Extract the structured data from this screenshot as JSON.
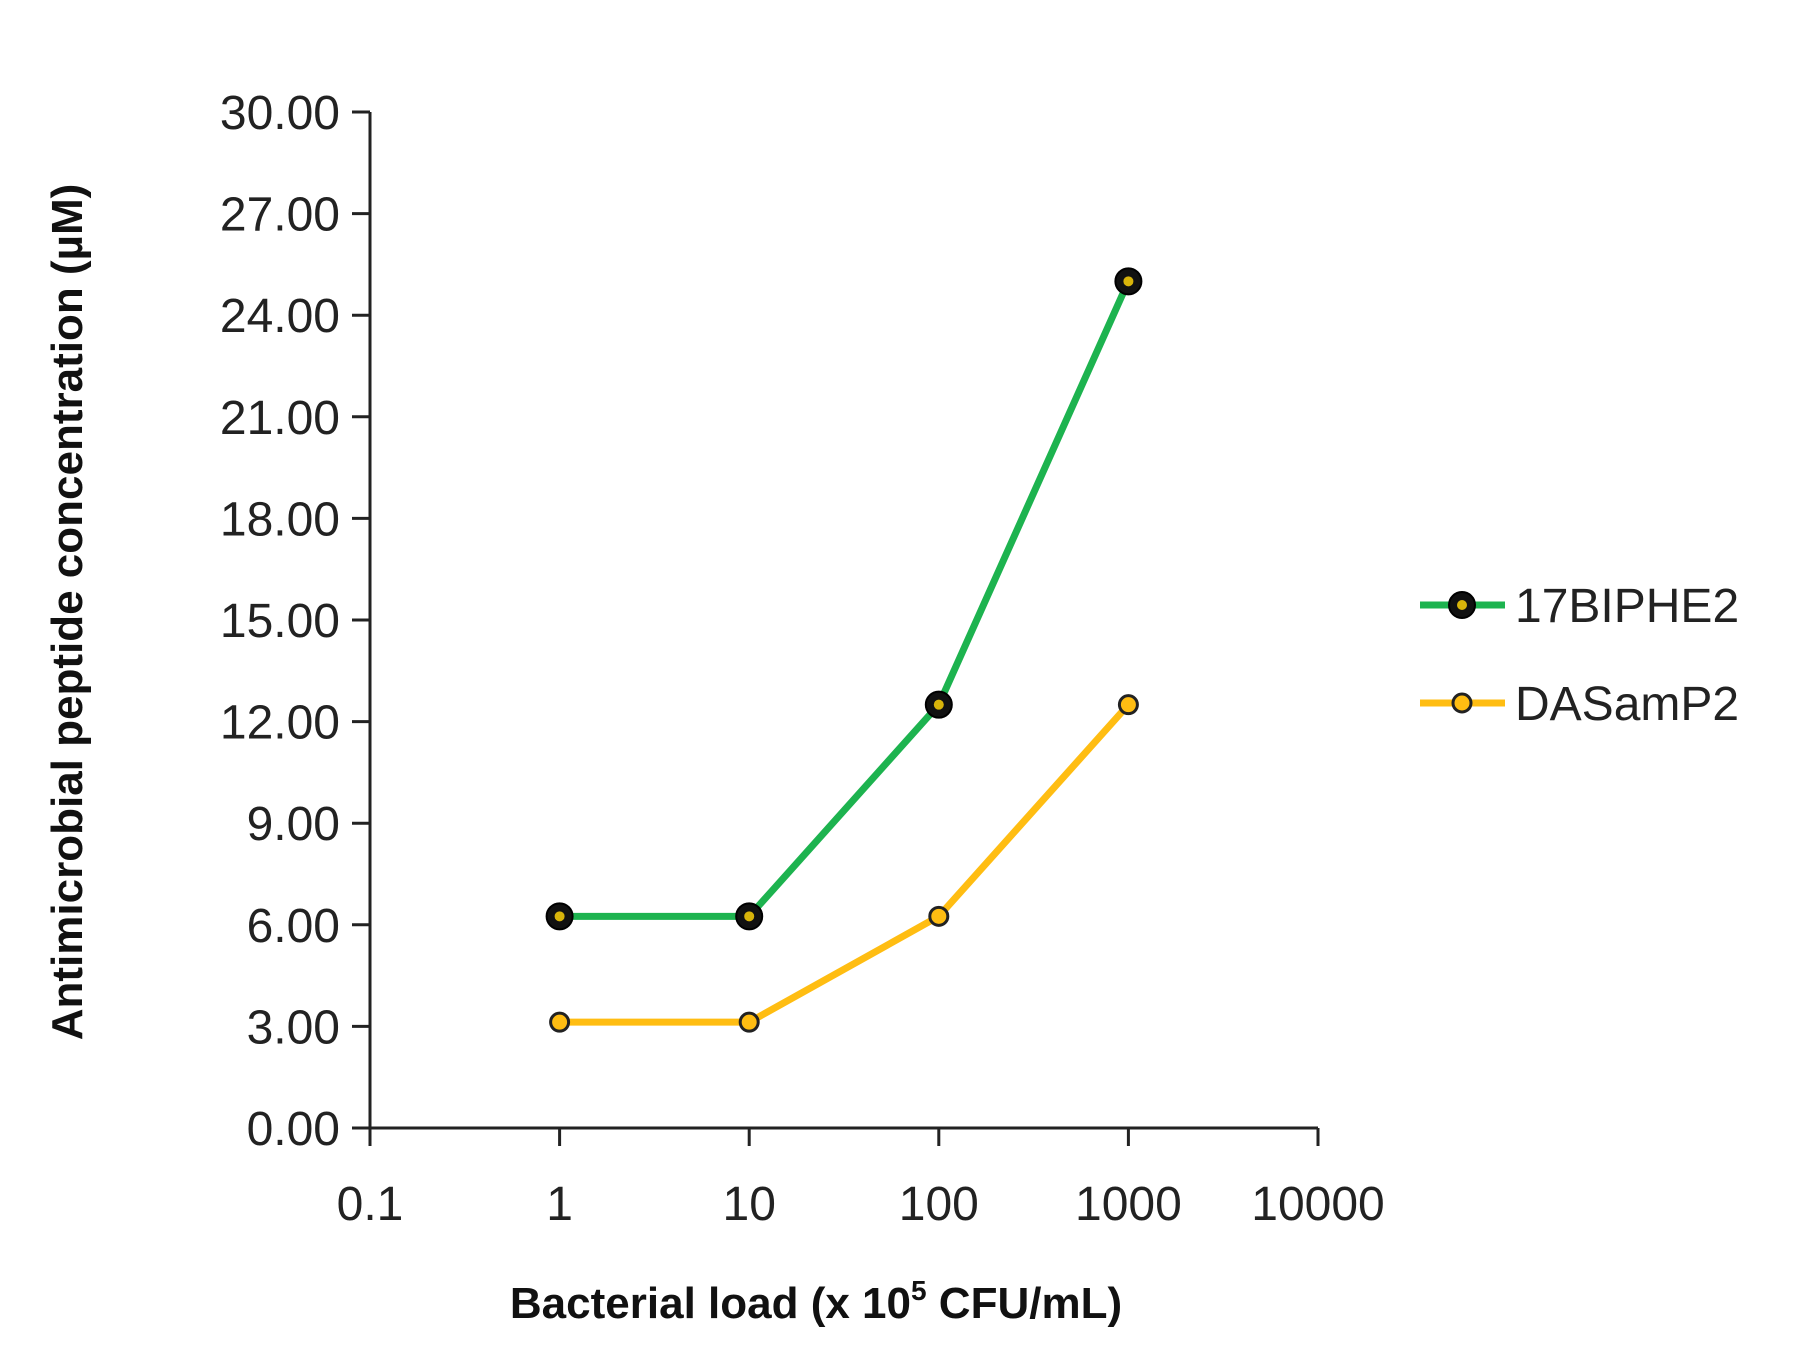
{
  "chart_data": {
    "type": "line",
    "x_scale": "log",
    "x": [
      1,
      10,
      100,
      1000
    ],
    "xlim": [
      0.1,
      10000
    ],
    "x_ticks": [
      "0.1",
      "1",
      "10",
      "100",
      "1000",
      "10000"
    ],
    "ylim": [
      0,
      30
    ],
    "y_ticks": [
      "0.00",
      "3.00",
      "6.00",
      "9.00",
      "12.00",
      "15.00",
      "18.00",
      "21.00",
      "24.00",
      "27.00",
      "30.00"
    ],
    "xlabel_main": "Bacterial load (x 10",
    "xlabel_sup": "5",
    "xlabel_end": " CFU/mL)",
    "ylabel": "Antimicrobial peptide concentration (µM)",
    "grid": false,
    "legend_position": "right",
    "series": [
      {
        "name": "17BIPHE2",
        "color": "#1db34f",
        "marker_fill": "#111111",
        "marker_center": "#d8b40a",
        "values": [
          6.25,
          6.25,
          12.5,
          25.0
        ]
      },
      {
        "name": "DASamP2",
        "color": "#ffbd12",
        "marker_fill": "#ffbd12",
        "marker_center": "#f5c400",
        "values": [
          3.125,
          3.125,
          6.25,
          12.5
        ]
      }
    ]
  }
}
